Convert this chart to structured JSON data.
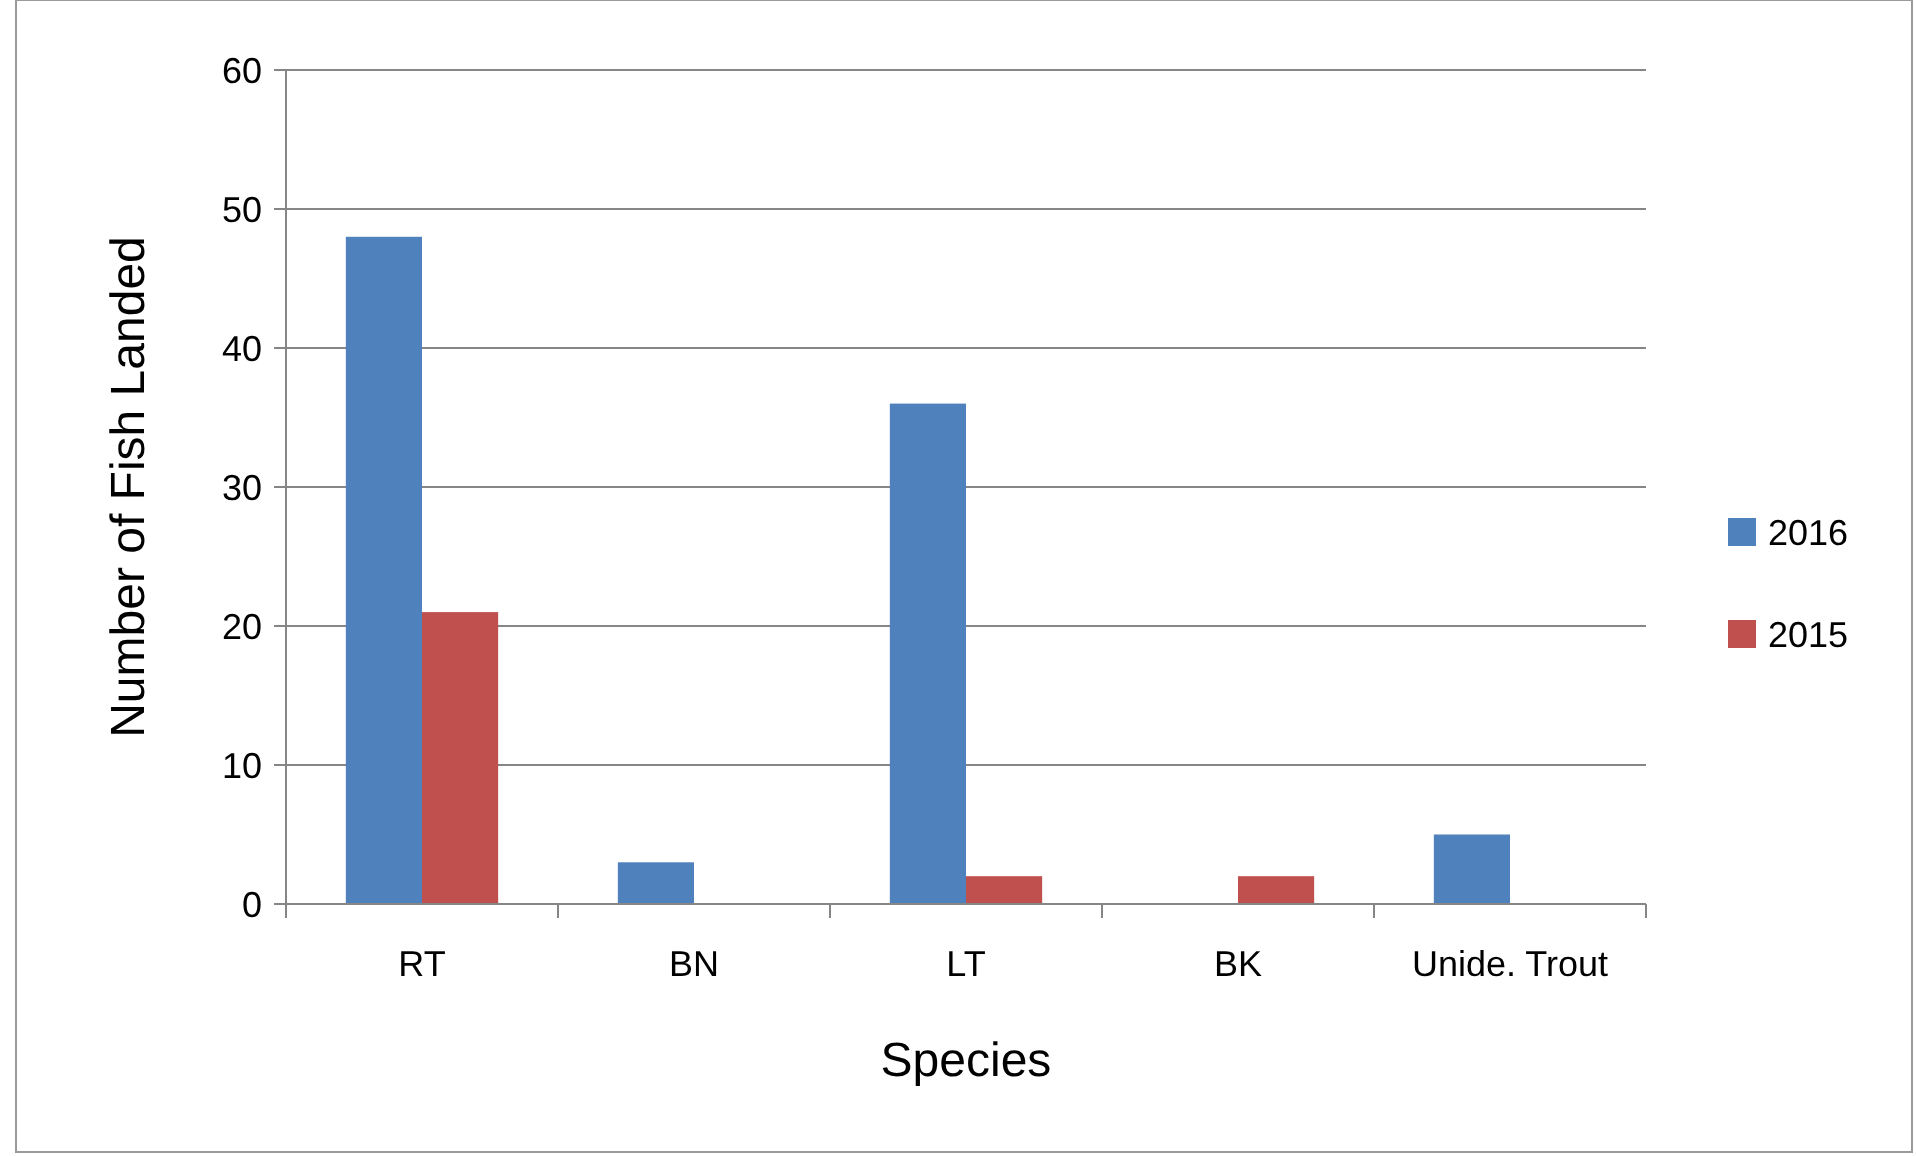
{
  "chart_data": {
    "type": "bar",
    "xlabel": "Species",
    "ylabel": "Number of Fish Landed",
    "categories": [
      "RT",
      "BN",
      "LT",
      "BK",
      "Unide. Trout"
    ],
    "series": [
      {
        "name": "2016",
        "color": "#4f81bd",
        "values": [
          48,
          3,
          36,
          0,
          5
        ]
      },
      {
        "name": "2015",
        "color": "#c0504d",
        "values": [
          21,
          0,
          2,
          2,
          0
        ]
      }
    ],
    "ylim": [
      0,
      60
    ],
    "yticks": [
      0,
      10,
      20,
      30,
      40,
      50,
      60
    ],
    "grid": "y",
    "legend": "right"
  }
}
